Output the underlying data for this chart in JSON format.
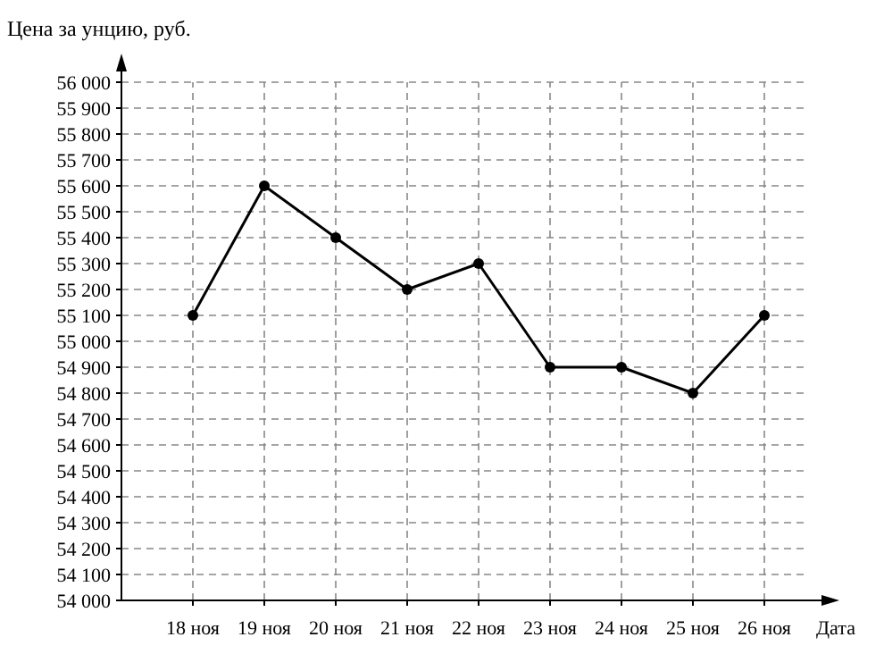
{
  "chart_data": {
    "type": "line",
    "ylabel": "Цена за унцию, руб.",
    "xlabel": "Дата",
    "categories": [
      "18 ноя",
      "19 ноя",
      "20 ноя",
      "21 ноя",
      "22 ноя",
      "23 ноя",
      "24 ноя",
      "25 ноя",
      "26 ноя"
    ],
    "series": [
      {
        "color": "#000000",
        "values": [
          55100,
          55600,
          55400,
          55200,
          55300,
          54900,
          54900,
          54800,
          55100
        ]
      }
    ],
    "ylim": [
      54000,
      56000
    ],
    "yticks": [
      {
        "value": 54000,
        "label": "54 000"
      },
      {
        "value": 54100,
        "label": "54 100"
      },
      {
        "value": 54200,
        "label": "54 200"
      },
      {
        "value": 54300,
        "label": "54 300"
      },
      {
        "value": 54400,
        "label": "54 400"
      },
      {
        "value": 54500,
        "label": "54 500"
      },
      {
        "value": 54600,
        "label": "54 600"
      },
      {
        "value": 54700,
        "label": "54 700"
      },
      {
        "value": 54800,
        "label": "54 800"
      },
      {
        "value": 54900,
        "label": "54 900"
      },
      {
        "value": 55000,
        "label": "55 000"
      },
      {
        "value": 55100,
        "label": "55 100"
      },
      {
        "value": 55200,
        "label": "55 200"
      },
      {
        "value": 55300,
        "label": "55 300"
      },
      {
        "value": 55400,
        "label": "55 400"
      },
      {
        "value": 55500,
        "label": "55 500"
      },
      {
        "value": 55600,
        "label": "55 600"
      },
      {
        "value": 55700,
        "label": "55 700"
      },
      {
        "value": 55800,
        "label": "55 800"
      },
      {
        "value": 55900,
        "label": "55 900"
      },
      {
        "value": 56000,
        "label": "56 000"
      }
    ],
    "grid": true,
    "marker": "circle",
    "line_style": "solid"
  }
}
